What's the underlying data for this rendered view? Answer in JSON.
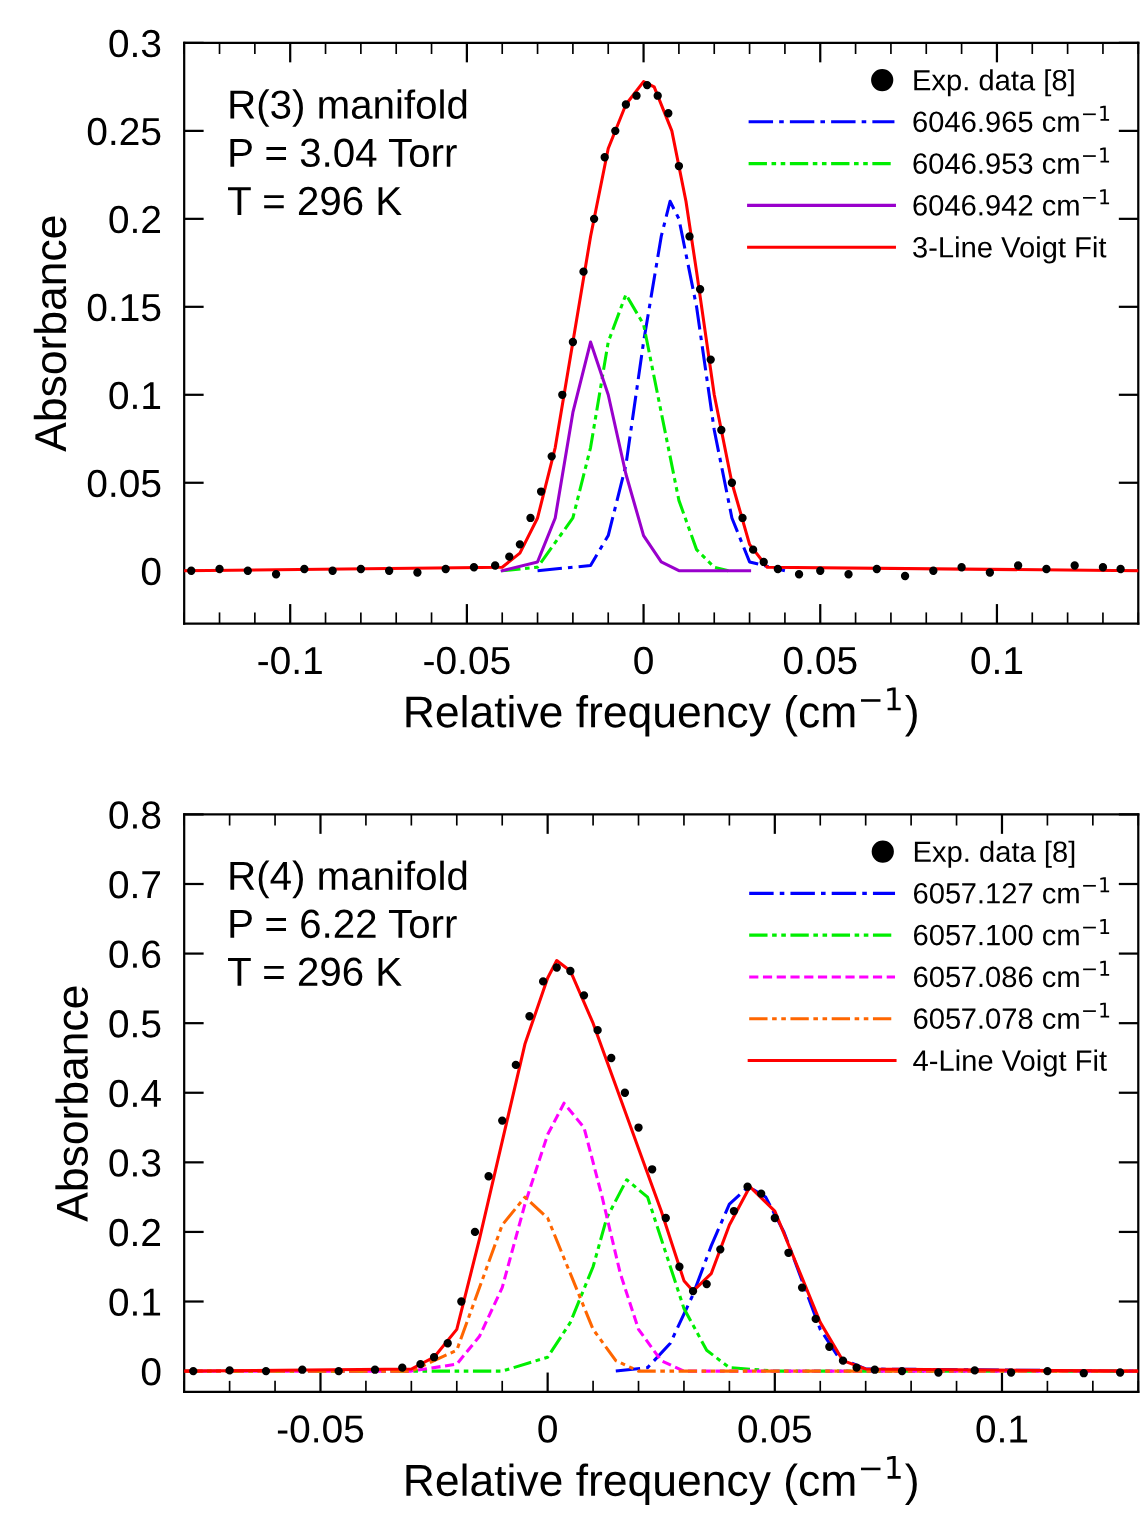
{
  "chart_data": [
    {
      "type": "line",
      "xlabel": "Relative frequency (cm$^{−1}$)",
      "ylabel": "Absorbance",
      "xlim": [
        -0.13,
        0.14
      ],
      "ylim": [
        -0.03,
        0.3
      ],
      "xticks": [
        -0.1,
        -0.05,
        0,
        0.05,
        0.1
      ],
      "yticks": [
        0,
        0.05,
        0.1,
        0.15,
        0.2,
        0.25,
        0.3
      ],
      "grid": false,
      "legend": "top right",
      "annotations": [
        "R(3) manifold",
        "P = 3.04 Torr",
        "T = 296 K"
      ],
      "series": [
        {
          "name": "Exp. data [8]",
          "type": "scatter",
          "marker": "circle",
          "color": "#000000",
          "x": [
            -0.128,
            -0.12,
            -0.112,
            -0.104,
            -0.096,
            -0.088,
            -0.08,
            -0.072,
            -0.064,
            -0.056,
            -0.048,
            -0.042,
            -0.038,
            -0.035,
            -0.032,
            -0.029,
            -0.026,
            -0.023,
            -0.02,
            -0.017,
            -0.014,
            -0.011,
            -0.008,
            -0.005,
            -0.002,
            0.001,
            0.004,
            0.007,
            0.01,
            0.013,
            0.016,
            0.019,
            0.022,
            0.025,
            0.028,
            0.031,
            0.034,
            0.038,
            0.044,
            0.05,
            0.058,
            0.066,
            0.074,
            0.082,
            0.09,
            0.098,
            0.106,
            0.114,
            0.122,
            0.13,
            0.135
          ],
          "values": [
            0,
            0.001,
            0,
            -0.002,
            0.001,
            0,
            0.001,
            0,
            -0.001,
            0.001,
            0.002,
            0.003,
            0.008,
            0.015,
            0.03,
            0.045,
            0.065,
            0.1,
            0.13,
            0.17,
            0.2,
            0.235,
            0.25,
            0.265,
            0.27,
            0.276,
            0.27,
            0.26,
            0.23,
            0.19,
            0.16,
            0.12,
            0.08,
            0.05,
            0.03,
            0.012,
            0.005,
            0.001,
            -0.002,
            0,
            -0.002,
            0.001,
            -0.003,
            0,
            0.002,
            -0.001,
            0.003,
            0.001,
            0.003,
            0.002,
            0.001
          ]
        },
        {
          "name": "6046.965 cm$^{−1}$",
          "color": "#0000ff",
          "line_style": "dashdot",
          "x": [
            -0.03,
            -0.015,
            -0.01,
            -0.005,
            0,
            0.005,
            0.0075,
            0.01,
            0.015,
            0.02,
            0.025,
            0.03,
            0.04
          ],
          "values": [
            0,
            0.003,
            0.02,
            0.06,
            0.13,
            0.19,
            0.21,
            0.2,
            0.15,
            0.08,
            0.03,
            0.005,
            0
          ]
        },
        {
          "name": "6046.953 cm$^{−1}$",
          "color": "#00ee00",
          "line_style": "dashdotdot",
          "x": [
            -0.04,
            -0.03,
            -0.02,
            -0.015,
            -0.01,
            -0.005,
            0,
            0.005,
            0.01,
            0.015,
            0.02,
            0.024
          ],
          "values": [
            0,
            0.002,
            0.03,
            0.07,
            0.13,
            0.157,
            0.14,
            0.09,
            0.04,
            0.012,
            0.002,
            0
          ]
        },
        {
          "name": "6046.942 cm$^{−1}$",
          "color": "#9900cc",
          "line_style": "solid",
          "x": [
            -0.04,
            -0.03,
            -0.025,
            -0.02,
            -0.015,
            -0.01,
            -0.005,
            0,
            0.005,
            0.01,
            0.03
          ],
          "values": [
            0,
            0.005,
            0.03,
            0.09,
            0.13,
            0.1,
            0.055,
            0.02,
            0.005,
            0,
            0
          ]
        },
        {
          "name": "3-Line Voigt Fit",
          "color": "#ff0000",
          "line_style": "solid",
          "x": [
            -0.13,
            -0.04,
            -0.035,
            -0.03,
            -0.025,
            -0.02,
            -0.015,
            -0.01,
            -0.005,
            0,
            0.003,
            0.008,
            0.012,
            0.015,
            0.02,
            0.025,
            0.03,
            0.035,
            0.14
          ],
          "values": [
            0,
            0.002,
            0.01,
            0.03,
            0.07,
            0.13,
            0.19,
            0.24,
            0.265,
            0.278,
            0.275,
            0.25,
            0.21,
            0.17,
            0.1,
            0.05,
            0.015,
            0.002,
            0
          ]
        }
      ]
    },
    {
      "type": "line",
      "xlabel": "Relative frequency (cm$^{−1}$)",
      "ylabel": "Absorbance",
      "xlim": [
        -0.08,
        0.13
      ],
      "ylim": [
        -0.03,
        0.8
      ],
      "xticks": [
        -0.05,
        0,
        0.05,
        0.1
      ],
      "yticks": [
        0,
        0.1,
        0.2,
        0.3,
        0.4,
        0.5,
        0.6,
        0.7,
        0.8
      ],
      "grid": false,
      "legend": "top right",
      "annotations": [
        "R(4) manifold",
        "P = 6.22 Torr",
        "T = 296 K"
      ],
      "series": [
        {
          "name": "Exp. data [8]",
          "type": "scatter",
          "marker": "circle",
          "color": "#000000",
          "x": [
            -0.078,
            -0.07,
            -0.062,
            -0.054,
            -0.046,
            -0.038,
            -0.032,
            -0.028,
            -0.025,
            -0.022,
            -0.019,
            -0.016,
            -0.013,
            -0.01,
            -0.007,
            -0.004,
            -0.001,
            0.002,
            0.005,
            0.008,
            0.011,
            0.014,
            0.017,
            0.02,
            0.023,
            0.026,
            0.029,
            0.032,
            0.035,
            0.038,
            0.041,
            0.044,
            0.047,
            0.05,
            0.053,
            0.056,
            0.059,
            0.062,
            0.065,
            0.068,
            0.072,
            0.078,
            0.086,
            0.094,
            0.102,
            0.11,
            0.118,
            0.126
          ],
          "values": [
            0,
            0.001,
            0,
            0.002,
            0,
            0.002,
            0.005,
            0.01,
            0.02,
            0.04,
            0.1,
            0.2,
            0.28,
            0.36,
            0.44,
            0.51,
            0.56,
            0.58,
            0.575,
            0.54,
            0.49,
            0.45,
            0.4,
            0.35,
            0.29,
            0.22,
            0.15,
            0.115,
            0.125,
            0.175,
            0.23,
            0.265,
            0.255,
            0.22,
            0.17,
            0.12,
            0.075,
            0.035,
            0.015,
            0.005,
            0.002,
            0,
            -0.002,
            0.001,
            -0.002,
            0,
            -0.003,
            -0.002
          ]
        },
        {
          "name": "6057.127 cm$^{−1}$",
          "color": "#0000ff",
          "line_style": "dashdot",
          "x": [
            0.015,
            0.022,
            0.027,
            0.032,
            0.036,
            0.04,
            0.0442,
            0.048,
            0.052,
            0.056,
            0.06,
            0.064,
            0.07,
            0.13
          ],
          "values": [
            0,
            0.005,
            0.04,
            0.11,
            0.18,
            0.24,
            0.265,
            0.25,
            0.2,
            0.13,
            0.06,
            0.02,
            0.003,
            0
          ]
        },
        {
          "name": "6057.100 cm$^{−1}$",
          "color": "#00ee00",
          "line_style": "dashdotdot",
          "x": [
            -0.08,
            -0.01,
            0,
            0.005,
            0.01,
            0.013,
            0.0174,
            0.022,
            0.026,
            0.03,
            0.035,
            0.04,
            0.05,
            0.13
          ],
          "values": [
            0,
            0,
            0.02,
            0.07,
            0.15,
            0.22,
            0.275,
            0.25,
            0.17,
            0.09,
            0.03,
            0.005,
            0,
            0
          ]
        },
        {
          "name": "6057.086 cm$^{−1}$",
          "color": "#ff00ff",
          "line_style": "dashed",
          "x": [
            -0.08,
            -0.03,
            -0.02,
            -0.015,
            -0.01,
            -0.005,
            0,
            0.0036,
            0.008,
            0.012,
            0.016,
            0.02,
            0.025,
            0.03,
            0.13
          ],
          "values": [
            0,
            0,
            0.01,
            0.05,
            0.12,
            0.24,
            0.34,
            0.385,
            0.35,
            0.25,
            0.14,
            0.06,
            0.015,
            0,
            0
          ]
        },
        {
          "name": "6057.078 cm$^{−1}$",
          "color": "#ff6600",
          "line_style": "dashdotdot",
          "x": [
            -0.08,
            -0.03,
            -0.02,
            -0.015,
            -0.01,
            -0.005,
            0,
            0.005,
            0.01,
            0.015,
            0.02,
            0.13
          ],
          "values": [
            0,
            0,
            0.03,
            0.12,
            0.21,
            0.25,
            0.22,
            0.14,
            0.06,
            0.015,
            0,
            0
          ]
        },
        {
          "name": "4-Line Voigt Fit",
          "color": "#ff0000",
          "line_style": "solid",
          "x": [
            -0.08,
            -0.03,
            -0.025,
            -0.02,
            -0.015,
            -0.01,
            -0.005,
            0,
            0.002,
            0.005,
            0.01,
            0.015,
            0.02,
            0.025,
            0.03,
            0.032,
            0.036,
            0.04,
            0.0445,
            0.05,
            0.055,
            0.06,
            0.065,
            0.07,
            0.13
          ],
          "values": [
            0,
            0.003,
            0.02,
            0.06,
            0.19,
            0.33,
            0.47,
            0.565,
            0.59,
            0.575,
            0.5,
            0.41,
            0.32,
            0.23,
            0.13,
            0.115,
            0.14,
            0.21,
            0.265,
            0.23,
            0.15,
            0.07,
            0.015,
            0.003,
            0
          ]
        }
      ]
    }
  ]
}
